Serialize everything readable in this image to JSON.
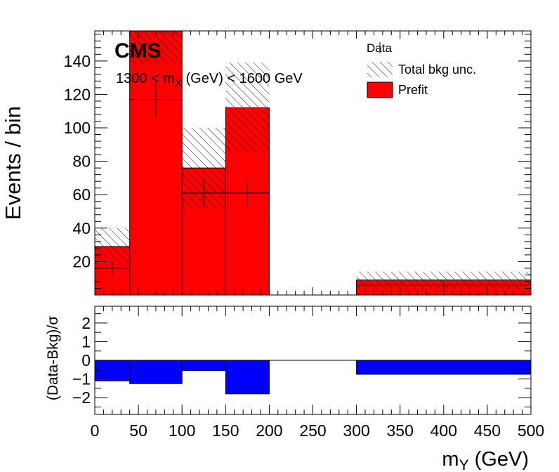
{
  "chart_data": [
    {
      "type": "bar",
      "panel": "main",
      "ylabel": "Events / bin",
      "xlim": [
        0,
        500
      ],
      "ylim": [
        0,
        158
      ],
      "yticks": [
        20,
        40,
        60,
        80,
        100,
        120,
        140
      ],
      "bins": [
        {
          "x0": 0,
          "x1": 40,
          "prefit": 29,
          "unc": 11,
          "data": 16,
          "data_err": 4
        },
        {
          "x0": 40,
          "x1": 100,
          "prefit": 158,
          "unc": 20,
          "data": 117,
          "data_err": 11
        },
        {
          "x0": 100,
          "x1": 150,
          "prefit": 76,
          "unc": 24,
          "data": 61,
          "data_err": 8
        },
        {
          "x0": 150,
          "x1": 200,
          "prefit": 112,
          "unc": 27,
          "data": 61,
          "data_err": 8
        },
        {
          "x0": 200,
          "x1": 300,
          "prefit": 0,
          "unc": 0,
          "data": null,
          "data_err": null
        },
        {
          "x0": 300,
          "x1": 500,
          "prefit": 9,
          "unc": 5,
          "data": 6,
          "data_err": 2.5
        }
      ],
      "colors": {
        "prefit": "#ff0000",
        "hatch": "#000000"
      },
      "legend": {
        "placement": "top-right",
        "entries": [
          {
            "label": "Data",
            "style": "marker"
          },
          {
            "label": "Total bkg unc.",
            "style": "hatch"
          },
          {
            "label": "Prefit",
            "style": "fill"
          }
        ]
      },
      "annotations": {
        "experiment": "CMS",
        "cut_prefix": "1300 < m",
        "cut_sub": "X",
        "cut_suffix": " (GeV) < 1600 GeV"
      }
    },
    {
      "type": "bar",
      "panel": "ratio",
      "ylabel": "(Data-Bkg)/σ",
      "xlabel_main": "m",
      "xlabel_sub": "Y",
      "xlabel_unit": " (GeV)",
      "xlim": [
        0,
        500
      ],
      "ylim": [
        -2.9,
        2.9
      ],
      "yticks": [
        -2,
        -1,
        0,
        1,
        2
      ],
      "xticks": [
        0,
        50,
        100,
        150,
        200,
        250,
        300,
        350,
        400,
        450,
        500
      ],
      "bins": [
        {
          "x0": 0,
          "x1": 40,
          "value": -1.1
        },
        {
          "x0": 40,
          "x1": 100,
          "value": -1.25
        },
        {
          "x0": 100,
          "x1": 150,
          "value": -0.55
        },
        {
          "x0": 150,
          "x1": 200,
          "value": -1.8
        },
        {
          "x0": 200,
          "x1": 300,
          "value": 0
        },
        {
          "x0": 300,
          "x1": 500,
          "value": -0.75
        }
      ],
      "colors": {
        "pull": "#0000ff"
      }
    }
  ]
}
